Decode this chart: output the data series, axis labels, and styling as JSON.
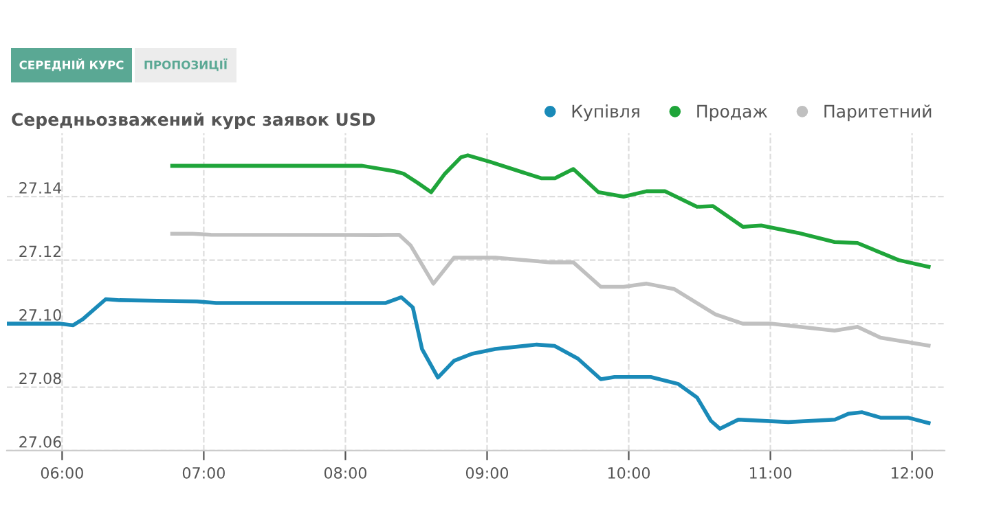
{
  "chart_data": {
    "type": "line",
    "title": "Середньозважений курс заявок USD",
    "annotations": [
      "СЕРЕДНІЙ КУРС",
      "ПРОПОЗИЦІЇ"
    ],
    "xlim": [
      5.61,
      12.23
    ],
    "xticks": [
      {
        "value": 6,
        "label": "06:00"
      },
      {
        "value": 7,
        "label": "07:00"
      },
      {
        "value": 8,
        "label": "08:00"
      },
      {
        "value": 9,
        "label": "09:00"
      },
      {
        "value": 10,
        "label": "10:00"
      },
      {
        "value": 11,
        "label": "11:00"
      },
      {
        "value": 12,
        "label": "12:00"
      }
    ],
    "ylim": [
      27.06,
      27.16
    ],
    "yticks": [
      27.06,
      27.08,
      {
        "value": 27.1,
        "label": "27.10"
      },
      27.12,
      27.14
    ],
    "grid": true,
    "legend": "top right",
    "line_style": "solid",
    "series": [
      {
        "name": "Купівля",
        "color": "#1a8ab8",
        "x": [
          5.614,
          5.98,
          6.078,
          6.146,
          6.308,
          6.405,
          6.951,
          7.087,
          8.282,
          8.395,
          8.476,
          8.541,
          8.653,
          8.767,
          8.893,
          9.058,
          9.35,
          9.476,
          9.641,
          9.803,
          9.9,
          10.155,
          10.35,
          10.483,
          10.58,
          10.644,
          10.774,
          11.126,
          11.456,
          11.55,
          11.648,
          11.777,
          11.971,
          12.117
        ],
        "values": [
          27.1,
          27.1,
          27.0995,
          27.1014,
          27.1077,
          27.1074,
          27.107,
          27.1065,
          27.1065,
          27.1083,
          27.1051,
          27.092,
          27.083,
          27.0883,
          27.0905,
          27.092,
          27.0934,
          27.093,
          27.089,
          27.0825,
          27.0832,
          27.0832,
          27.081,
          27.0767,
          27.0694,
          27.0669,
          27.0698,
          27.069,
          27.0698,
          27.0716,
          27.0721,
          27.0704,
          27.0704,
          27.0687
        ]
      },
      {
        "name": "Продаж",
        "color": "#1fa53a",
        "x": [
          6.777,
          8.119,
          8.347,
          8.411,
          8.508,
          8.605,
          8.702,
          8.816,
          8.864,
          9.026,
          9.382,
          9.479,
          9.609,
          9.786,
          9.964,
          10.126,
          10.255,
          10.482,
          10.595,
          10.806,
          10.935,
          11.194,
          11.453,
          11.615,
          11.906,
          12.117
        ],
        "values": [
          27.1497,
          27.1497,
          27.148,
          27.1472,
          27.1444,
          27.1414,
          27.1472,
          27.1524,
          27.153,
          27.1509,
          27.1458,
          27.1458,
          27.1487,
          27.1414,
          27.14,
          27.1417,
          27.1417,
          27.1368,
          27.137,
          27.1305,
          27.1309,
          27.1286,
          27.1257,
          27.1254,
          27.12,
          27.1179
        ]
      },
      {
        "name": "Паритетний",
        "color": "#c0c0c0",
        "x": [
          6.777,
          6.922,
          7.051,
          8.217,
          8.379,
          8.459,
          8.621,
          8.767,
          9.058,
          9.447,
          9.609,
          9.803,
          9.964,
          10.126,
          10.32,
          10.612,
          10.806,
          11.0,
          11.453,
          11.615,
          11.777,
          12.117
        ],
        "values": [
          27.1283,
          27.1283,
          27.128,
          27.1279,
          27.128,
          27.1247,
          27.1126,
          27.1208,
          27.1208,
          27.1193,
          27.1193,
          27.1116,
          27.1116,
          27.1126,
          27.1109,
          27.1029,
          27.1,
          27.1,
          27.0978,
          27.099,
          27.0956,
          27.0931
        ]
      }
    ]
  }
}
